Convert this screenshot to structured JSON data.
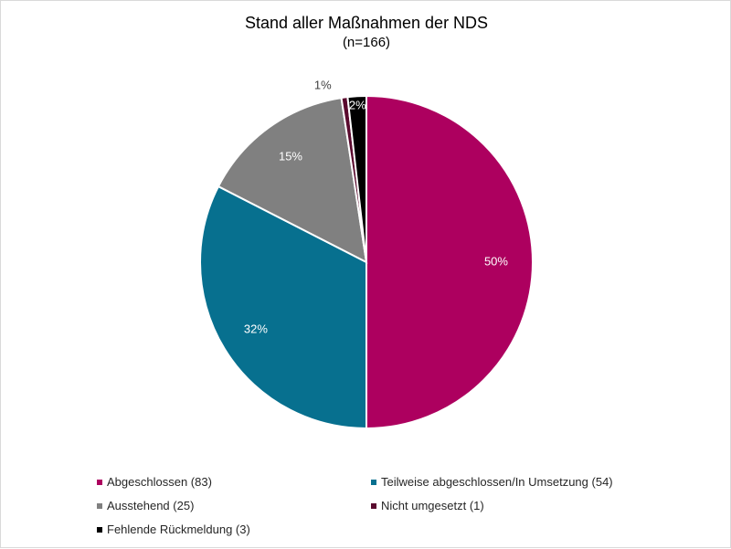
{
  "chart_data": {
    "type": "pie",
    "title": "Stand aller Maßnahmen der NDS",
    "subtitle": "(n=166)",
    "slices": [
      {
        "label": "Abgeschlossen (83)",
        "value": 83,
        "percent_label": "50%",
        "color": "#ad005f"
      },
      {
        "label": "Teilweise abgeschlossen/In Umsetzung (54)",
        "value": 54,
        "percent_label": "32%",
        "color": "#07708f"
      },
      {
        "label": "Ausstehend (25)",
        "value": 25,
        "percent_label": "15%",
        "color": "#808080"
      },
      {
        "label": "Nicht umgesetzt (1)",
        "value": 1,
        "percent_label": "1%",
        "color": "#5a0a2e"
      },
      {
        "label": "Fehlende Rückmeldung (3)",
        "value": 3,
        "percent_label": "2%",
        "color": "#000000"
      }
    ],
    "legend_position": "bottom"
  }
}
